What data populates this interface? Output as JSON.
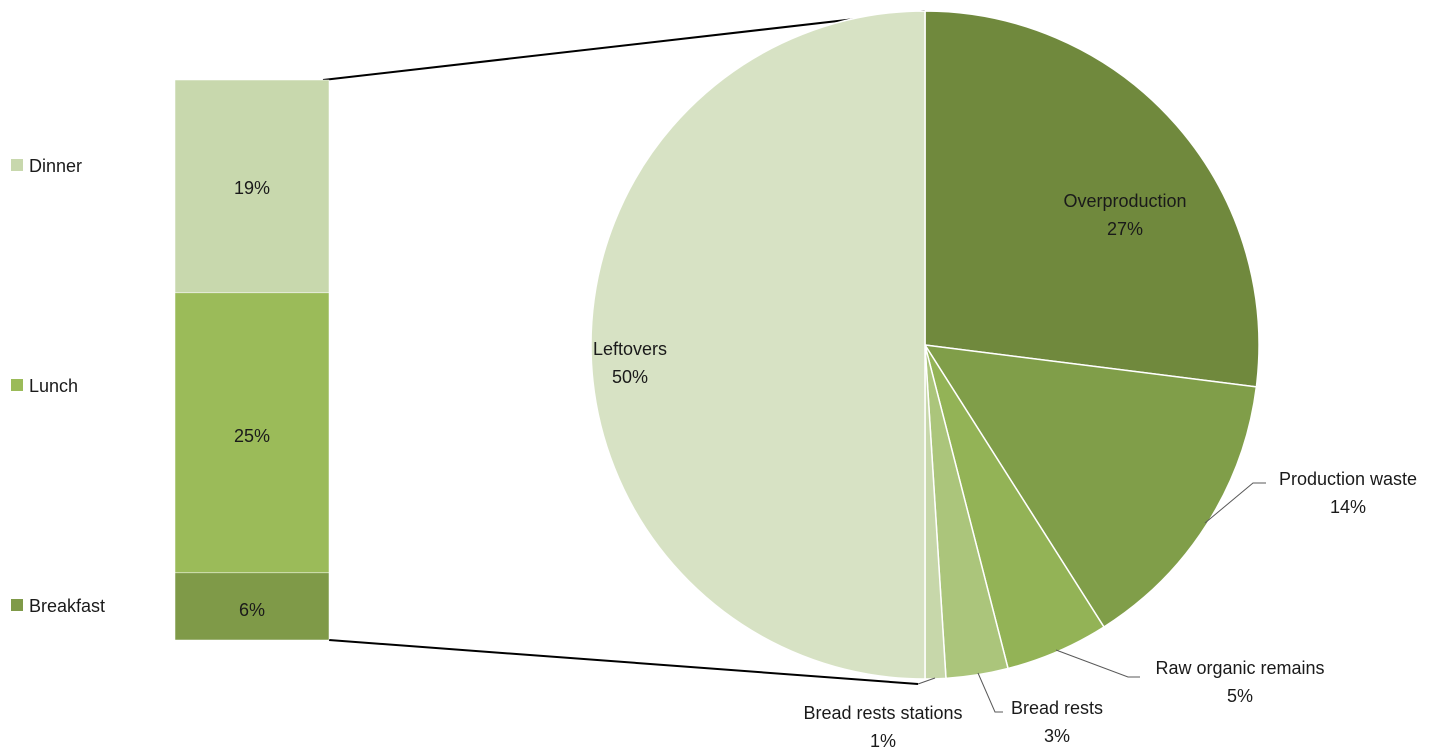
{
  "chart_data": {
    "type": "bar-of-pie",
    "pie": {
      "start_angle_deg": 0,
      "direction": "clockwise",
      "slices": [
        {
          "label": "Overproduction",
          "value": 27,
          "value_label": "27%",
          "color": "#70893D"
        },
        {
          "label": "Production waste",
          "value": 14,
          "value_label": "14%",
          "color": "#809E49"
        },
        {
          "label": "Raw organic remains",
          "value": 5,
          "value_label": "5%",
          "color": "#93B356"
        },
        {
          "label": "Bread rests",
          "value": 3,
          "value_label": "3%",
          "color": "#ABC57B"
        },
        {
          "label": "Bread rests stations",
          "value": 1,
          "value_label": "1%",
          "color": "#C7D7AA"
        },
        {
          "label": "Leftovers",
          "value": 50,
          "value_label": "50%",
          "color": "#D7E2C4"
        }
      ]
    },
    "bar": {
      "stacked": true,
      "segments": [
        {
          "label": "Breakfast",
          "value": 6,
          "value_label": "6%",
          "color": "#7F9A48"
        },
        {
          "label": "Lunch",
          "value": 25,
          "value_label": "25%",
          "color": "#9BBB59"
        },
        {
          "label": "Dinner",
          "value": 19,
          "value_label": "19%",
          "color": "#C8D8AD"
        }
      ]
    },
    "legend": {
      "position": "left",
      "entries": [
        "Dinner",
        "Lunch",
        "Breakfast"
      ]
    }
  }
}
